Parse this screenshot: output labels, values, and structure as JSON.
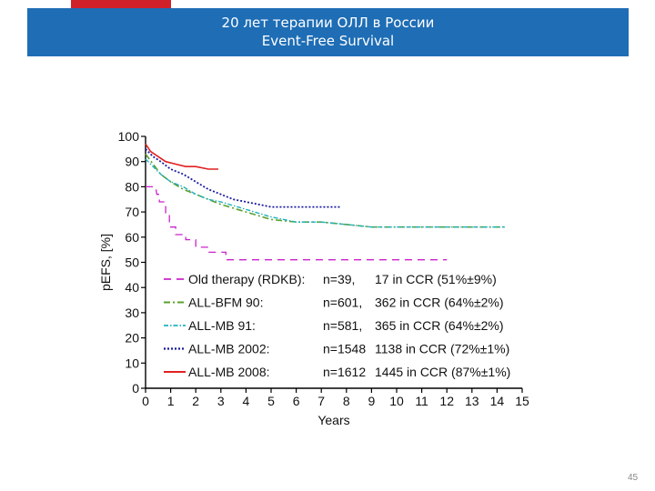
{
  "slide": {
    "title_line1": "20 лет терапии ОЛЛ в России",
    "title_line2": "Event-Free Survival",
    "page_number": "45",
    "accent_red": "#d0202a",
    "header_blue": "#1e6db5"
  },
  "chart_data": {
    "type": "line",
    "title": "",
    "xlabel": "Years",
    "ylabel": "pEFS, [%]",
    "xlim": [
      0,
      15
    ],
    "ylim": [
      0,
      100
    ],
    "xticks": [
      0,
      1,
      2,
      3,
      4,
      5,
      6,
      7,
      8,
      9,
      10,
      11,
      12,
      13,
      14,
      15
    ],
    "yticks": [
      0,
      10,
      20,
      30,
      40,
      50,
      60,
      70,
      80,
      90,
      100
    ],
    "legend_position": "lower-left inside plot",
    "series": [
      {
        "name": "Old therapy (RDKB):",
        "n": "n=39,",
        "ccr": "17 in CCR (51%±9%)",
        "color": "#cc22cc",
        "dash": "8,6",
        "width": 1.3,
        "x": [
          0,
          0.4,
          0.45,
          0.55,
          0.55,
          0.8,
          0.8,
          0.95,
          0.95,
          1.2,
          1.2,
          1.6,
          1.6,
          2.0,
          2.0,
          2.5,
          2.5,
          3.2,
          3.2,
          12
        ],
        "y": [
          80,
          80,
          77,
          77,
          74,
          74,
          69,
          69,
          64,
          64,
          61,
          61,
          59,
          59,
          56,
          56,
          54,
          54,
          51,
          51
        ]
      },
      {
        "name": "ALL-BFM 90:",
        "n": "n=601,",
        "ccr": "362 in CCR (64%±2%)",
        "color": "#5aa02c",
        "dash": "7,3,2,3",
        "width": 1.6,
        "x": [
          0,
          0.3,
          0.6,
          1,
          1.5,
          2,
          2.5,
          3,
          4,
          5,
          6,
          7,
          8,
          9,
          10,
          12,
          14.3
        ],
        "y": [
          93,
          89,
          85,
          82,
          79,
          77,
          75,
          73,
          70,
          67,
          66,
          66,
          65,
          64,
          64,
          64,
          64
        ]
      },
      {
        "name": "ALL-MB 91:",
        "n": "n=581,",
        "ccr": "365 in CCR (64%±2%)",
        "color": "#20b0c0",
        "dash": "5,2,1.5,2",
        "width": 1.4,
        "x": [
          0,
          0.3,
          0.6,
          1,
          1.5,
          2,
          2.5,
          3,
          4,
          5,
          6,
          7,
          8,
          9,
          10,
          12,
          14.3
        ],
        "y": [
          91,
          88,
          85,
          82,
          80,
          77,
          75,
          74,
          71,
          68,
          66,
          66,
          65,
          64,
          64,
          64,
          64
        ]
      },
      {
        "name": "ALL-MB 2002:",
        "n": "n=1548",
        "ccr": "1138 in CCR (72%±1%)",
        "color": "#1a1aa0",
        "dash": "2,2",
        "width": 1.8,
        "x": [
          0,
          0.3,
          0.6,
          1,
          1.5,
          2,
          2.5,
          3,
          3.5,
          4,
          5,
          6,
          7,
          7.8
        ],
        "y": [
          95,
          92,
          90,
          87,
          85,
          82,
          79,
          77,
          75,
          74,
          72,
          72,
          72,
          72
        ]
      },
      {
        "name": "ALL-MB 2008:",
        "n": "n=1612",
        "ccr": "1445 in CCR (87%±1%)",
        "color": "#e02020",
        "dash": "",
        "width": 1.6,
        "x": [
          0,
          0.2,
          0.5,
          0.8,
          1.2,
          1.6,
          2,
          2.5,
          2.9
        ],
        "y": [
          97,
          94,
          92,
          90,
          89,
          88,
          88,
          87,
          87
        ]
      }
    ]
  }
}
